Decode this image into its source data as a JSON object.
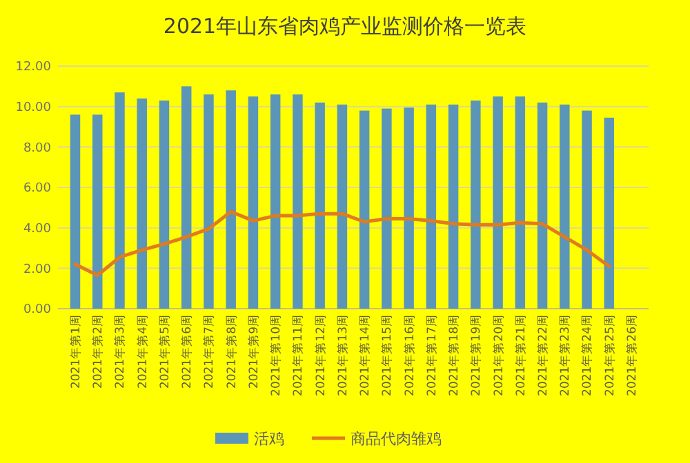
{
  "chart_data": {
    "type": "bar",
    "title": "2021年山东省肉鸡产业监测价格一览表",
    "categories": [
      "2021年第1周",
      "2021年第2周",
      "2021年第3周",
      "2021年第4周",
      "2021年第5周",
      "2021年第6周",
      "2021年第7周",
      "2021年第8周",
      "2021年第9周",
      "2021年第10周",
      "2021年第11周",
      "2021年第12周",
      "2021年第13周",
      "2021年第14周",
      "2021年第15周",
      "2021年第16周",
      "2021年第17周",
      "2021年第18周",
      "2021年第19周",
      "2021年第20周",
      "2021年第21周",
      "2021年第22周",
      "2021年第23周",
      "2021年第24周",
      "2021年第25周",
      "2021年第26周"
    ],
    "series": [
      {
        "name": "活鸡",
        "color": "#5b96b8",
        "values": [
          9.6,
          9.6,
          10.7,
          10.4,
          10.3,
          11.0,
          10.6,
          10.8,
          10.5,
          10.6,
          10.6,
          10.2,
          10.1,
          9.8,
          9.9,
          9.95,
          10.1,
          10.1,
          10.3,
          10.5,
          10.5,
          10.2,
          10.1,
          9.8,
          9.45,
          null
        ]
      },
      {
        "name": "商品代肉雏鸡",
        "type": "line",
        "color": "#e07b20",
        "values": [
          2.2,
          1.65,
          2.55,
          2.9,
          3.2,
          3.55,
          3.95,
          4.8,
          4.35,
          4.6,
          4.6,
          4.7,
          4.7,
          4.3,
          4.45,
          4.45,
          4.35,
          4.2,
          4.15,
          4.15,
          4.25,
          4.2,
          3.55,
          2.9,
          2.1,
          null
        ]
      }
    ],
    "ylim": [
      0,
      12
    ],
    "yticks": [
      {
        "value": 0,
        "label": "0.00"
      },
      {
        "value": 2,
        "label": "2.00"
      },
      {
        "value": 4,
        "label": "4.00"
      },
      {
        "value": 6,
        "label": "6.00"
      },
      {
        "value": 8,
        "label": "8.00"
      },
      {
        "value": 10,
        "label": "10.00"
      },
      {
        "value": 12,
        "label": "12.00"
      }
    ],
    "grid": "y",
    "legend": "bottom",
    "marker": "none",
    "line_style": "solid"
  }
}
